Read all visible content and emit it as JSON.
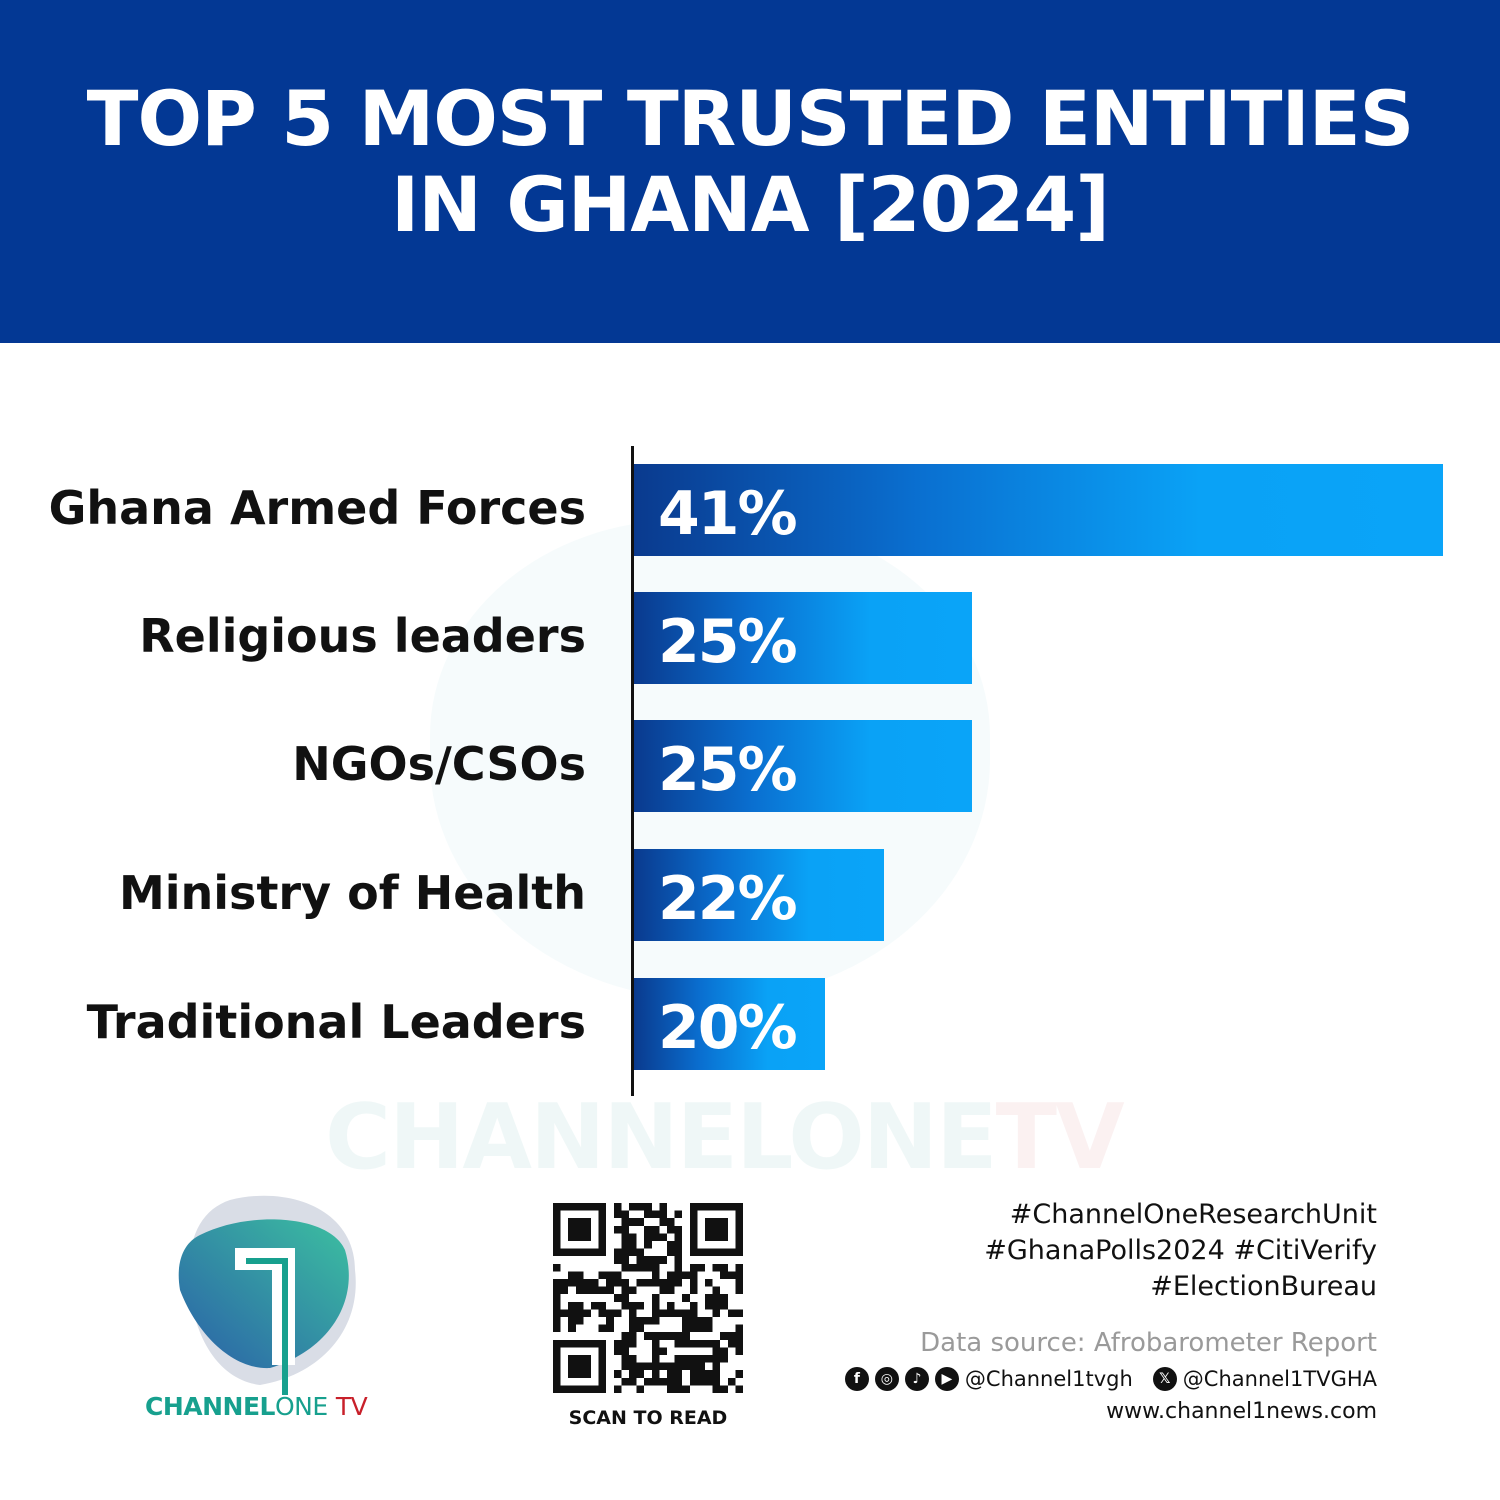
{
  "header": {
    "title_line1": "TOP 5 MOST TRUSTED ENTITIES",
    "title_line2": "IN GHANA [2024]"
  },
  "chart_data": {
    "type": "bar",
    "orientation": "horizontal",
    "title": "TOP 5 MOST TRUSTED ENTITIES IN GHANA [2024]",
    "categories": [
      "Ghana Armed Forces",
      "Religious leaders",
      "NGOs/CSOs",
      "Ministry of Health",
      "Traditional Leaders"
    ],
    "values": [
      41,
      25,
      25,
      22,
      20
    ],
    "value_labels": [
      "41%",
      "25%",
      "25%",
      "22%",
      "20%"
    ],
    "unit": "%",
    "grid": false,
    "legend": "none",
    "colors": {
      "bar_start": "#0a3a8e",
      "bar_end": "#0aa4f8",
      "header": "#033894"
    }
  },
  "watermark": {
    "a": "CHANNELONE",
    "b": "TV"
  },
  "logo": {
    "brand_a": "CHANNEL",
    "brand_b": "ONE",
    "brand_c": "TV",
    "colors": {
      "teal": "#17a08e",
      "red": "#c8202a"
    }
  },
  "qr": {
    "caption": "SCAN TO READ"
  },
  "footer": {
    "tags": [
      "#ChannelOneResearchUnit",
      "#GhanaPolls2024 #CitiVerify",
      "#ElectionBureau"
    ],
    "source": "Data source: Afrobarometer Report",
    "social_icons": [
      "facebook-icon",
      "instagram-icon",
      "tiktok-icon",
      "youtube-icon"
    ],
    "handle_social": "@Channel1tvgh",
    "handle_x": "@Channel1TVGHA",
    "website": "www.channel1news.com"
  }
}
